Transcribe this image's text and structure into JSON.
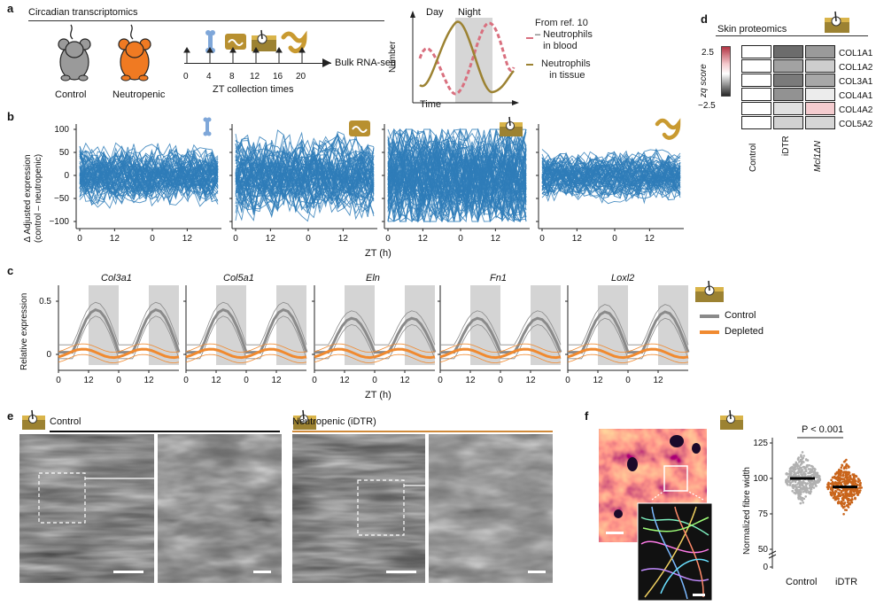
{
  "panel_letters": [
    "a",
    "b",
    "c",
    "d",
    "e",
    "f"
  ],
  "panel_a": {
    "section_title": "Circadian transcriptomics",
    "mouse_labels": [
      "Control",
      "Neutropenic"
    ],
    "zt_ticks": [
      "0",
      "4",
      "8",
      "12",
      "16",
      "20"
    ],
    "zt_caption": "ZT collection times",
    "arrow_label": "Bulk RNA-seq",
    "inset": {
      "day_label": "Day",
      "night_label": "Night",
      "y_label": "Number",
      "x_label": "Time",
      "legend_blood": "From ref. 10\n– Neutrophils\n   in blood",
      "legend_tissue": "Neutrophils\n   in tissue"
    },
    "colors": {
      "control_mouse": "#9a9a9a",
      "neutropenic_mouse": "#f07a22",
      "tissue_line": "#9c8232",
      "blood_line": "#d9707f",
      "night_shade": "#d6d6d6"
    }
  },
  "panel_b": {
    "y_label": "Δ Adjusted expression\n(control – neutropenic)",
    "x_label": "ZT (h)",
    "y_ticks": [
      "100",
      "50",
      "0",
      "−50",
      "−100"
    ],
    "x_ticks": [
      "0",
      "12",
      "0",
      "12"
    ],
    "line_color": "#2f7db8",
    "tissues": [
      "bone-icon",
      "gut-icon",
      "skin-icon",
      "intestine-icon"
    ]
  },
  "panel_c": {
    "genes": [
      "Col3a1",
      "Col5a1",
      "Eln",
      "Fn1",
      "Loxl2"
    ],
    "y_label": "Relative expression",
    "y_ticks": [
      "0.5",
      "0"
    ],
    "x_label": "ZT (h)",
    "x_ticks": [
      "0",
      "12",
      "0",
      "12"
    ],
    "legend": [
      "Control",
      "Depleted"
    ],
    "colors": {
      "control": "#8a8a8a",
      "depleted": "#f08a30",
      "shade": "#d4d4d4"
    }
  },
  "panel_d": {
    "title": "Skin proteomics",
    "proteins": [
      "COL1A1",
      "COL1A2",
      "COL3A1",
      "COL4A1",
      "COL4A2",
      "COL5A2"
    ],
    "columns": [
      "Control",
      "iDTR",
      "Mcl1ΔN"
    ],
    "colorbar_label": "zq score",
    "colorbar_ticks": [
      "2.5",
      "−2.5"
    ],
    "cells": [
      [
        "#ffffff",
        "#6c6c6c",
        "#9a9a9a"
      ],
      [
        "#ffffff",
        "#a2a2a2",
        "#cdcdcd"
      ],
      [
        "#ffffff",
        "#7a7a7a",
        "#a8a8a8"
      ],
      [
        "#ffffff",
        "#929292",
        "#ececec"
      ],
      [
        "#ffffff",
        "#e0e0e0",
        "#f4cccf"
      ],
      [
        "#ffffff",
        "#d2d2d2",
        "#d6d6d6"
      ]
    ]
  },
  "panel_e": {
    "control_label": "Control",
    "neutropenic_label": "Neutropenic (iDTR)",
    "colors": {
      "control_bar": "#111111",
      "neutropenic_bar": "#d08a3a"
    }
  },
  "panel_f": {
    "y_label": "Normalized fibre width",
    "y_ticks": [
      "125",
      "100",
      "75",
      "50",
      "0"
    ],
    "x_labels": [
      "Control",
      "iDTR"
    ],
    "p_value": "P < 0.001",
    "chart_data": {
      "type": "scatter",
      "title": "",
      "xlabel": "",
      "ylabel": "Normalized fibre width",
      "categories": [
        "Control",
        "iDTR"
      ],
      "medians": [
        100,
        94
      ],
      "ylim": [
        0,
        125
      ],
      "colors": [
        "#b0b0b0",
        "#c9641a"
      ]
    }
  }
}
